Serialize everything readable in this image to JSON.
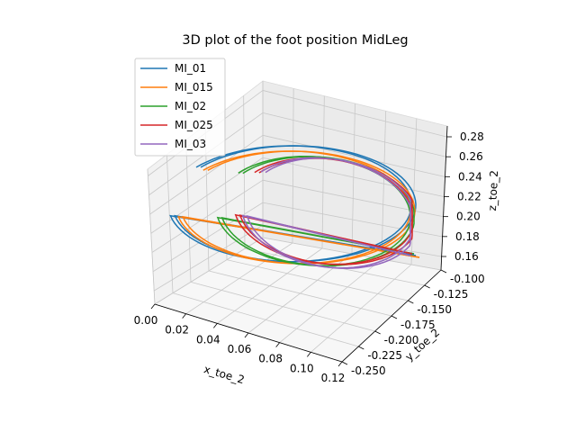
{
  "chart_data": {
    "type": "line3d",
    "title": "3D plot of the foot position MidLeg",
    "xlabel": "x_toe_2",
    "ylabel": "y_toe_2",
    "zlabel": "z_toe_2",
    "xlim": [
      0.0,
      0.12
    ],
    "ylim": [
      -0.25,
      -0.1
    ],
    "zlim": [
      0.16,
      0.28
    ],
    "x_ticks": [
      "0.00",
      "0.02",
      "0.04",
      "0.06",
      "0.08",
      "0.10",
      "0.12"
    ],
    "y_ticks": [
      "-0.100",
      "-0.125",
      "-0.150",
      "-0.175",
      "-0.200",
      "-0.225",
      "-0.250"
    ],
    "z_ticks": [
      "0.16",
      "0.18",
      "0.20",
      "0.22",
      "0.24",
      "0.26",
      "0.28"
    ],
    "grid": true,
    "legend_position": "upper-left",
    "series": [
      {
        "name": "MI_01",
        "color": "#1f77b4",
        "label_display": "MI_01"
      },
      {
        "name": "MI_015",
        "color": "#ff7f0e",
        "label_display": "MI_015"
      },
      {
        "name": "MI_02",
        "color": "#2ca02c",
        "label_display": "MI_02"
      },
      {
        "name": "MI_025",
        "color": "#d62728",
        "label_display": "MI_025"
      },
      {
        "name": "MI_03",
        "color": "#9467bd",
        "label_display": "MI_03"
      }
    ]
  }
}
